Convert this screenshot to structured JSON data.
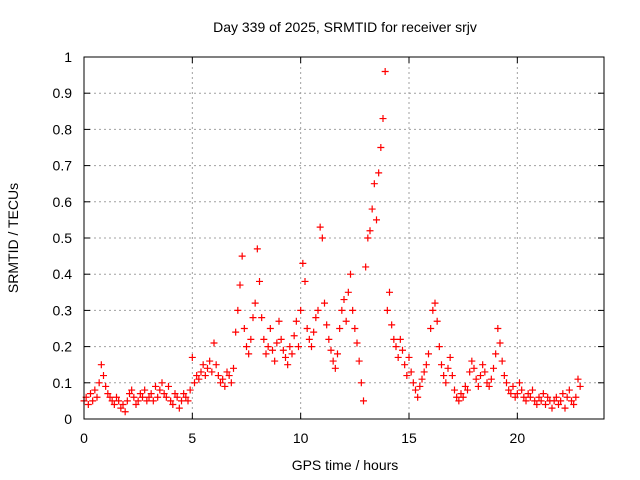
{
  "chart_data": {
    "type": "scatter",
    "title": "Day 339 of 2025, SRMTID for receiver srjv",
    "xlabel": "GPS time / hours",
    "ylabel": "SRMTID / TECUs",
    "xlim": [
      0,
      24
    ],
    "ylim": [
      0,
      1
    ],
    "xticks": [
      0,
      5,
      10,
      15,
      20
    ],
    "xtick_labels": [
      "0",
      "5",
      "10",
      "15",
      "20"
    ],
    "yticks": [
      0,
      0.1,
      0.2,
      0.3,
      0.4,
      0.5,
      0.6,
      0.7,
      0.8,
      0.9,
      1
    ],
    "ytick_labels": [
      "0",
      "0.1",
      "0.2",
      "0.3",
      "0.4",
      "0.5",
      "0.6",
      "0.7",
      "0.8",
      "0.9",
      "1"
    ],
    "grid": true,
    "marker": "+",
    "series": [
      {
        "name": "srjv",
        "color": "#ff0000",
        "points": [
          [
            0.0,
            0.05
          ],
          [
            0.1,
            0.06
          ],
          [
            0.2,
            0.04
          ],
          [
            0.3,
            0.07
          ],
          [
            0.4,
            0.05
          ],
          [
            0.5,
            0.08
          ],
          [
            0.6,
            0.06
          ],
          [
            0.7,
            0.1
          ],
          [
            0.8,
            0.15
          ],
          [
            0.9,
            0.12
          ],
          [
            1.0,
            0.09
          ],
          [
            1.1,
            0.07
          ],
          [
            1.2,
            0.06
          ],
          [
            1.3,
            0.05
          ],
          [
            1.4,
            0.04
          ],
          [
            1.5,
            0.06
          ],
          [
            1.6,
            0.05
          ],
          [
            1.7,
            0.03
          ],
          [
            1.8,
            0.04
          ],
          [
            1.9,
            0.02
          ],
          [
            2.0,
            0.05
          ],
          [
            2.1,
            0.07
          ],
          [
            2.2,
            0.08
          ],
          [
            2.3,
            0.06
          ],
          [
            2.4,
            0.04
          ],
          [
            2.5,
            0.05
          ],
          [
            2.6,
            0.07
          ],
          [
            2.7,
            0.06
          ],
          [
            2.8,
            0.08
          ],
          [
            2.9,
            0.05
          ],
          [
            3.0,
            0.06
          ],
          [
            3.1,
            0.07
          ],
          [
            3.2,
            0.05
          ],
          [
            3.3,
            0.09
          ],
          [
            3.4,
            0.06
          ],
          [
            3.5,
            0.08
          ],
          [
            3.6,
            0.1
          ],
          [
            3.7,
            0.07
          ],
          [
            3.8,
            0.06
          ],
          [
            3.9,
            0.09
          ],
          [
            4.0,
            0.05
          ],
          [
            4.1,
            0.04
          ],
          [
            4.2,
            0.07
          ],
          [
            4.3,
            0.06
          ],
          [
            4.4,
            0.03
          ],
          [
            4.5,
            0.05
          ],
          [
            4.6,
            0.07
          ],
          [
            4.7,
            0.06
          ],
          [
            4.8,
            0.05
          ],
          [
            4.9,
            0.08
          ],
          [
            5.0,
            0.17
          ],
          [
            5.1,
            0.1
          ],
          [
            5.2,
            0.12
          ],
          [
            5.3,
            0.11
          ],
          [
            5.4,
            0.13
          ],
          [
            5.5,
            0.15
          ],
          [
            5.6,
            0.12
          ],
          [
            5.7,
            0.14
          ],
          [
            5.8,
            0.16
          ],
          [
            5.9,
            0.13
          ],
          [
            6.0,
            0.21
          ],
          [
            6.1,
            0.15
          ],
          [
            6.2,
            0.12
          ],
          [
            6.3,
            0.1
          ],
          [
            6.4,
            0.11
          ],
          [
            6.5,
            0.09
          ],
          [
            6.6,
            0.13
          ],
          [
            6.7,
            0.12
          ],
          [
            6.8,
            0.1
          ],
          [
            6.9,
            0.14
          ],
          [
            7.0,
            0.24
          ],
          [
            7.1,
            0.3
          ],
          [
            7.2,
            0.37
          ],
          [
            7.3,
            0.45
          ],
          [
            7.4,
            0.25
          ],
          [
            7.5,
            0.2
          ],
          [
            7.6,
            0.18
          ],
          [
            7.7,
            0.22
          ],
          [
            7.8,
            0.28
          ],
          [
            7.9,
            0.32
          ],
          [
            8.0,
            0.47
          ],
          [
            8.1,
            0.38
          ],
          [
            8.2,
            0.28
          ],
          [
            8.3,
            0.22
          ],
          [
            8.4,
            0.18
          ],
          [
            8.5,
            0.2
          ],
          [
            8.6,
            0.25
          ],
          [
            8.7,
            0.19
          ],
          [
            8.8,
            0.16
          ],
          [
            8.9,
            0.21
          ],
          [
            9.0,
            0.27
          ],
          [
            9.1,
            0.22
          ],
          [
            9.2,
            0.19
          ],
          [
            9.3,
            0.17
          ],
          [
            9.4,
            0.15
          ],
          [
            9.5,
            0.2
          ],
          [
            9.6,
            0.18
          ],
          [
            9.7,
            0.23
          ],
          [
            9.8,
            0.27
          ],
          [
            9.9,
            0.2
          ],
          [
            10.0,
            0.3
          ],
          [
            10.1,
            0.43
          ],
          [
            10.2,
            0.38
          ],
          [
            10.3,
            0.25
          ],
          [
            10.4,
            0.22
          ],
          [
            10.5,
            0.2
          ],
          [
            10.6,
            0.24
          ],
          [
            10.7,
            0.28
          ],
          [
            10.8,
            0.3
          ],
          [
            10.9,
            0.53
          ],
          [
            11.0,
            0.5
          ],
          [
            11.1,
            0.32
          ],
          [
            11.2,
            0.26
          ],
          [
            11.3,
            0.22
          ],
          [
            11.4,
            0.19
          ],
          [
            11.5,
            0.16
          ],
          [
            11.6,
            0.14
          ],
          [
            11.7,
            0.18
          ],
          [
            11.8,
            0.25
          ],
          [
            11.9,
            0.3
          ],
          [
            12.0,
            0.33
          ],
          [
            12.1,
            0.27
          ],
          [
            12.2,
            0.35
          ],
          [
            12.3,
            0.4
          ],
          [
            12.4,
            0.3
          ],
          [
            12.5,
            0.25
          ],
          [
            12.6,
            0.21
          ],
          [
            12.7,
            0.16
          ],
          [
            12.8,
            0.1
          ],
          [
            12.9,
            0.05
          ],
          [
            13.0,
            0.42
          ],
          [
            13.1,
            0.5
          ],
          [
            13.2,
            0.52
          ],
          [
            13.3,
            0.58
          ],
          [
            13.4,
            0.65
          ],
          [
            13.5,
            0.55
          ],
          [
            13.6,
            0.68
          ],
          [
            13.7,
            0.75
          ],
          [
            13.8,
            0.83
          ],
          [
            13.9,
            0.96
          ],
          [
            14.0,
            0.3
          ],
          [
            14.1,
            0.35
          ],
          [
            14.2,
            0.26
          ],
          [
            14.3,
            0.22
          ],
          [
            14.4,
            0.2
          ],
          [
            14.5,
            0.17
          ],
          [
            14.6,
            0.22
          ],
          [
            14.7,
            0.19
          ],
          [
            14.8,
            0.15
          ],
          [
            14.9,
            0.12
          ],
          [
            15.0,
            0.17
          ],
          [
            15.1,
            0.13
          ],
          [
            15.2,
            0.1
          ],
          [
            15.3,
            0.08
          ],
          [
            15.4,
            0.06
          ],
          [
            15.5,
            0.09
          ],
          [
            15.6,
            0.11
          ],
          [
            15.7,
            0.13
          ],
          [
            15.8,
            0.15
          ],
          [
            15.9,
            0.18
          ],
          [
            16.0,
            0.25
          ],
          [
            16.1,
            0.3
          ],
          [
            16.2,
            0.32
          ],
          [
            16.3,
            0.27
          ],
          [
            16.4,
            0.2
          ],
          [
            16.5,
            0.15
          ],
          [
            16.6,
            0.12
          ],
          [
            16.7,
            0.1
          ],
          [
            16.8,
            0.14
          ],
          [
            16.9,
            0.17
          ],
          [
            17.0,
            0.12
          ],
          [
            17.1,
            0.08
          ],
          [
            17.2,
            0.06
          ],
          [
            17.3,
            0.05
          ],
          [
            17.4,
            0.07
          ],
          [
            17.5,
            0.06
          ],
          [
            17.6,
            0.09
          ],
          [
            17.7,
            0.08
          ],
          [
            17.8,
            0.13
          ],
          [
            17.9,
            0.16
          ],
          [
            18.0,
            0.14
          ],
          [
            18.1,
            0.11
          ],
          [
            18.2,
            0.09
          ],
          [
            18.3,
            0.12
          ],
          [
            18.4,
            0.15
          ],
          [
            18.5,
            0.13
          ],
          [
            18.6,
            0.1
          ],
          [
            18.7,
            0.09
          ],
          [
            18.8,
            0.11
          ],
          [
            18.9,
            0.14
          ],
          [
            19.0,
            0.18
          ],
          [
            19.1,
            0.25
          ],
          [
            19.2,
            0.21
          ],
          [
            19.3,
            0.16
          ],
          [
            19.4,
            0.12
          ],
          [
            19.5,
            0.1
          ],
          [
            19.6,
            0.08
          ],
          [
            19.7,
            0.07
          ],
          [
            19.8,
            0.09
          ],
          [
            19.9,
            0.06
          ],
          [
            20.0,
            0.07
          ],
          [
            20.1,
            0.1
          ],
          [
            20.2,
            0.08
          ],
          [
            20.3,
            0.06
          ],
          [
            20.4,
            0.05
          ],
          [
            20.5,
            0.07
          ],
          [
            20.6,
            0.06
          ],
          [
            20.7,
            0.08
          ],
          [
            20.8,
            0.05
          ],
          [
            20.9,
            0.04
          ],
          [
            21.0,
            0.06
          ],
          [
            21.1,
            0.05
          ],
          [
            21.2,
            0.07
          ],
          [
            21.3,
            0.04
          ],
          [
            21.4,
            0.06
          ],
          [
            21.5,
            0.05
          ],
          [
            21.6,
            0.03
          ],
          [
            21.7,
            0.05
          ],
          [
            21.8,
            0.06
          ],
          [
            21.9,
            0.04
          ],
          [
            22.0,
            0.05
          ],
          [
            22.1,
            0.07
          ],
          [
            22.2,
            0.03
          ],
          [
            22.3,
            0.06
          ],
          [
            22.4,
            0.08
          ],
          [
            22.5,
            0.05
          ],
          [
            22.6,
            0.04
          ],
          [
            22.7,
            0.06
          ],
          [
            22.8,
            0.11
          ],
          [
            22.9,
            0.09
          ]
        ]
      }
    ]
  }
}
